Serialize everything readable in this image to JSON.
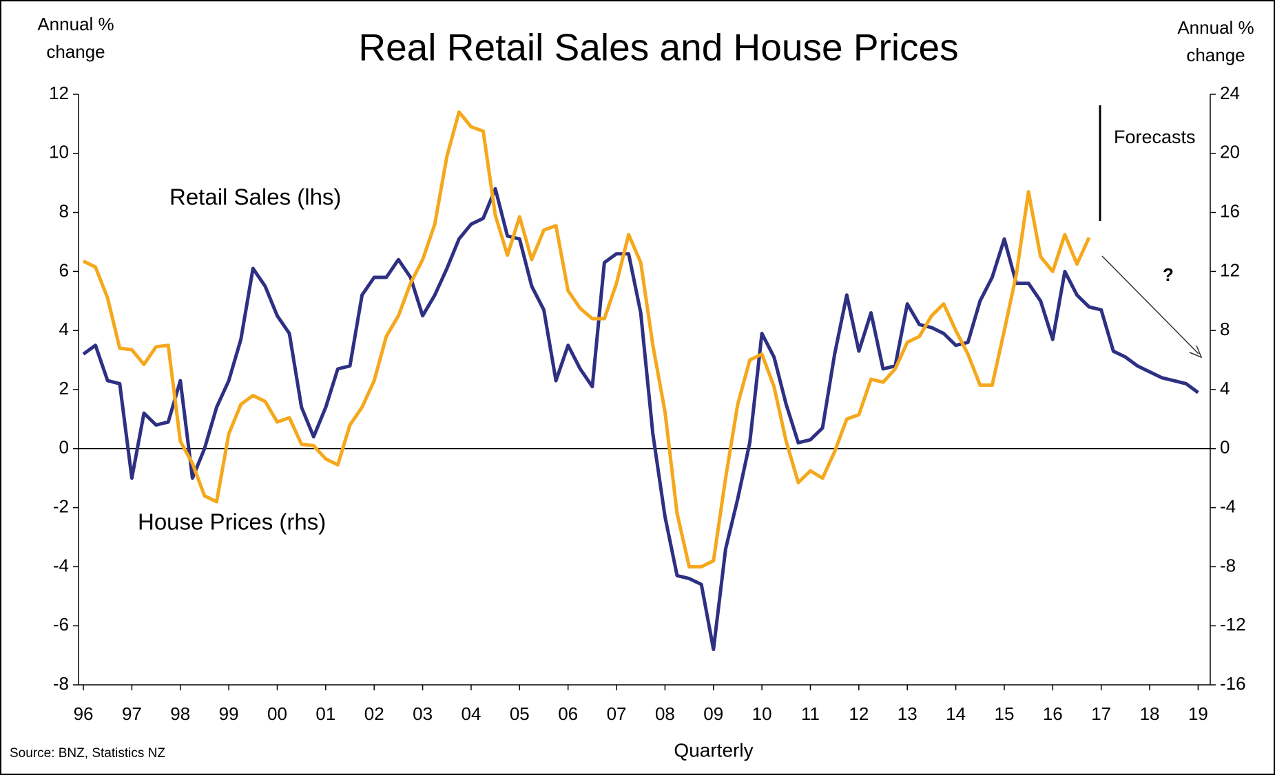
{
  "chart_data": {
    "type": "line",
    "title": "Real Retail Sales and House Prices",
    "y_label": "Annual % change",
    "y2_label": "Annual % change",
    "x_label": "Quarterly",
    "source": "Source: BNZ, Statistics NZ",
    "annotations": [
      "Forecasts",
      "?"
    ],
    "x": [
      1996,
      1996.25,
      1996.5,
      1996.75,
      1997,
      1997.25,
      1997.5,
      1997.75,
      1998,
      1998.25,
      1998.5,
      1998.75,
      1999,
      1999.25,
      1999.5,
      1999.75,
      2000,
      2000.25,
      2000.5,
      2000.75,
      2001,
      2001.25,
      2001.5,
      2001.75,
      2002,
      2002.25,
      2002.5,
      2002.75,
      2003,
      2003.25,
      2003.5,
      2003.75,
      2004,
      2004.25,
      2004.5,
      2004.75,
      2005,
      2005.25,
      2005.5,
      2005.75,
      2006,
      2006.25,
      2006.5,
      2006.75,
      2007,
      2007.25,
      2007.5,
      2007.75,
      2008,
      2008.25,
      2008.5,
      2008.75,
      2009,
      2009.25,
      2009.5,
      2009.75,
      2010,
      2010.25,
      2010.5,
      2010.75,
      2011,
      2011.25,
      2011.5,
      2011.75,
      2012,
      2012.25,
      2012.5,
      2012.75,
      2013,
      2013.25,
      2013.5,
      2013.75,
      2014,
      2014.25,
      2014.5,
      2014.75,
      2015,
      2015.25,
      2015.5,
      2015.75,
      2016,
      2016.25,
      2016.5,
      2016.75,
      2017,
      2017.25,
      2017.5,
      2017.75,
      2018,
      2018.25,
      2018.5,
      2018.75,
      2019
    ],
    "series": [
      {
        "name": "Retail Sales (lhs)",
        "color": "#2e3083",
        "axis": "y",
        "values": [
          3.2,
          3.5,
          2.3,
          2.2,
          -1.0,
          1.2,
          0.8,
          0.9,
          2.3,
          -1.0,
          0.0,
          1.4,
          2.3,
          3.7,
          6.1,
          5.5,
          4.5,
          3.9,
          1.4,
          0.4,
          1.4,
          2.7,
          2.8,
          5.2,
          5.8,
          5.8,
          6.4,
          5.8,
          4.5,
          5.2,
          6.1,
          7.1,
          7.6,
          7.8,
          8.8,
          7.2,
          7.1,
          5.5,
          4.7,
          2.3,
          3.5,
          2.7,
          2.1,
          6.3,
          6.6,
          6.6,
          4.6,
          0.5,
          -2.3,
          -4.3,
          -4.4,
          -4.6,
          -6.8,
          -3.4,
          -1.7,
          0.2,
          3.9,
          3.1,
          1.5,
          0.2,
          0.3,
          0.7,
          3.2,
          5.2,
          3.3,
          4.6,
          2.7,
          2.8,
          4.9,
          4.2,
          4.1,
          3.9,
          3.5,
          3.6,
          5.0,
          5.8,
          7.1,
          5.6,
          5.6,
          5.0,
          3.7,
          6.0,
          5.2,
          4.8,
          4.7,
          3.3,
          3.1,
          2.8,
          2.6,
          2.4,
          2.3,
          2.2,
          1.9
        ]
      },
      {
        "name": "House Prices (rhs)",
        "color": "#f5a81c",
        "axis": "y2",
        "values": [
          12.7,
          12.3,
          10.2,
          6.8,
          6.7,
          5.7,
          6.9,
          7.0,
          0.5,
          -1.0,
          -3.2,
          -3.6,
          1.0,
          3.0,
          3.6,
          3.2,
          1.8,
          2.1,
          0.3,
          0.2,
          -0.7,
          -1.1,
          1.6,
          2.8,
          4.6,
          7.6,
          9.0,
          11.2,
          12.8,
          15.2,
          19.8,
          22.8,
          21.8,
          21.5,
          15.8,
          13.1,
          15.7,
          12.8,
          14.8,
          15.1,
          10.7,
          9.5,
          8.8,
          8.8,
          11.2,
          14.5,
          12.6,
          7.0,
          2.5,
          -4.4,
          -8.0,
          -8.0,
          -7.6,
          -2.0,
          3.0,
          6.0,
          6.4,
          4.2,
          0.5,
          -2.3,
          -1.5,
          -2.0,
          -0.2,
          2.0,
          2.3,
          4.7,
          4.5,
          5.4,
          7.2,
          7.6,
          9.0,
          9.8,
          8.0,
          6.4,
          4.3,
          4.3,
          8.0,
          11.8,
          17.4,
          13.0,
          12.0,
          14.5,
          12.5,
          14.3,
          null,
          null,
          null,
          null,
          null,
          null,
          null,
          null,
          null
        ]
      }
    ],
    "xlim": [
      1995.9,
      2019.25
    ],
    "xticks": [
      {
        "value": 1996,
        "label": "96"
      },
      {
        "value": 1997,
        "label": "97"
      },
      {
        "value": 1998,
        "label": "98"
      },
      {
        "value": 1999,
        "label": "99"
      },
      {
        "value": 2000,
        "label": "00"
      },
      {
        "value": 2001,
        "label": "01"
      },
      {
        "value": 2002,
        "label": "02"
      },
      {
        "value": 2003,
        "label": "03"
      },
      {
        "value": 2004,
        "label": "04"
      },
      {
        "value": 2005,
        "label": "05"
      },
      {
        "value": 2006,
        "label": "06"
      },
      {
        "value": 2007,
        "label": "07"
      },
      {
        "value": 2008,
        "label": "08"
      },
      {
        "value": 2009,
        "label": "09"
      },
      {
        "value": 2010,
        "label": "10"
      },
      {
        "value": 2011,
        "label": "11"
      },
      {
        "value": 2012,
        "label": "12"
      },
      {
        "value": 2013,
        "label": "13"
      },
      {
        "value": 2014,
        "label": "14"
      },
      {
        "value": 2015,
        "label": "15"
      },
      {
        "value": 2016,
        "label": "16"
      },
      {
        "value": 2017,
        "label": "17"
      },
      {
        "value": 2018,
        "label": "18"
      },
      {
        "value": 2019,
        "label": "19"
      }
    ],
    "ylim": [
      -8,
      12
    ],
    "yticks": [
      -8,
      -6,
      -4,
      -2,
      0,
      2,
      4,
      6,
      8,
      10,
      12
    ],
    "y2lim": [
      -16,
      24
    ],
    "y2ticks": [
      -16,
      -12,
      -8,
      -4,
      0,
      4,
      8,
      12,
      16,
      20,
      24
    ],
    "grid": false,
    "zero_line": true
  }
}
